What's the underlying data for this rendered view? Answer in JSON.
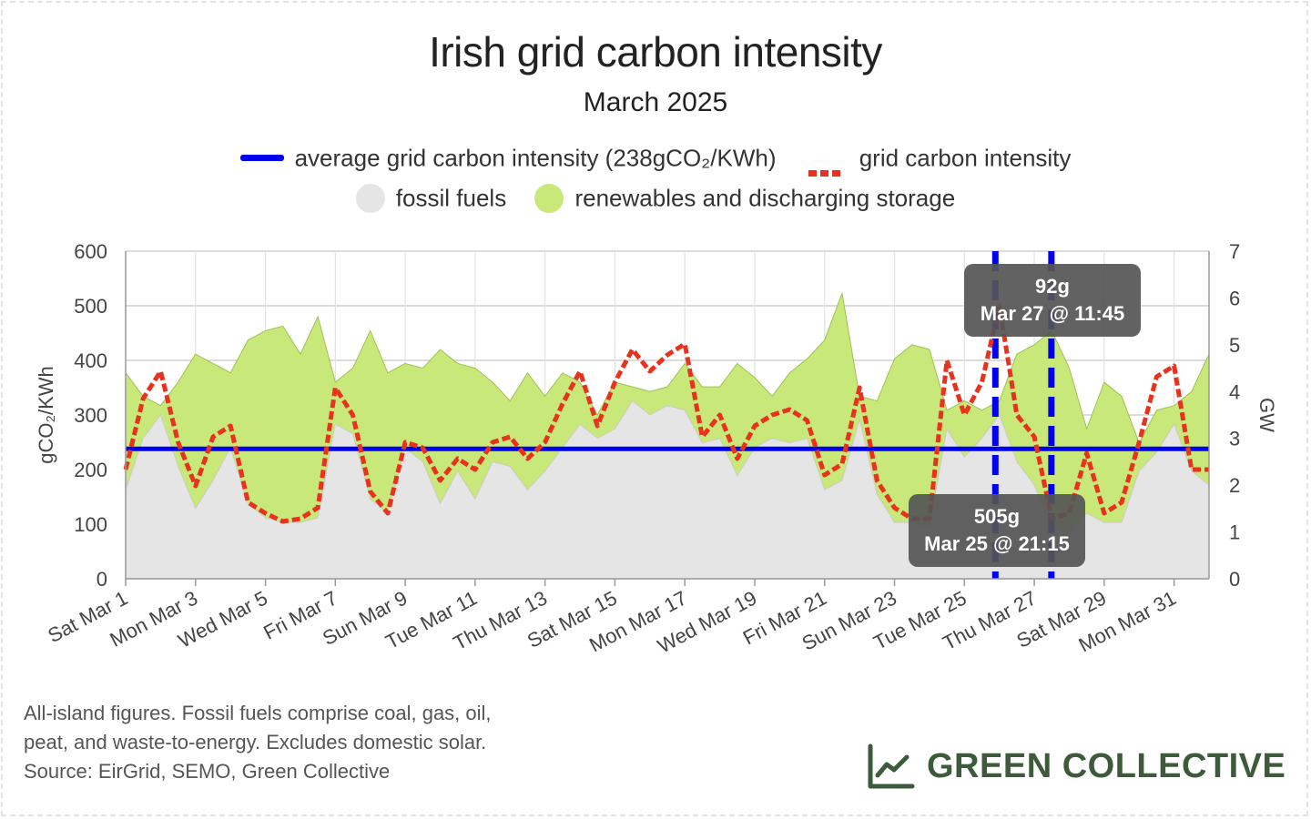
{
  "colors": {
    "average_line": "#0000ee",
    "intensity_line": "#e8321e",
    "fossil_fill": "#e5e5e5",
    "renewables_fill": "#c9e87a",
    "renewables_stroke": "#9fc24e",
    "tooltip_bg": "#555555",
    "brand": "#3d5a3a"
  },
  "legend": {
    "average": "average grid carbon intensity (238gCO₂/KWh)",
    "intensity": "grid carbon intensity",
    "fossil": "fossil fuels",
    "renewables": "renewables and discharging storage"
  },
  "tooltips": [
    {
      "value": "92g",
      "time": "Mar 27 @ 11:45"
    },
    {
      "value": "505g",
      "time": "Mar 25 @ 21:15"
    }
  ],
  "footnote": [
    "All-island figures. Fossil fuels comprise coal, gas, oil,",
    "peat, and waste-to-energy. Excludes domestic solar.",
    "Source: EirGrid, SEMO, Green Collective"
  ],
  "brand": {
    "name": "GREEN COLLECTIVE",
    "icon": "line-chart-icon"
  },
  "chart_data": {
    "type": "line",
    "title": "Irish grid carbon intensity",
    "subtitle": "March 2025",
    "ylabel": "gCO₂/KWh",
    "y2label": "GW",
    "ylim": [
      0,
      600
    ],
    "y2lim": [
      0,
      7
    ],
    "yticks": [
      0,
      100,
      200,
      300,
      400,
      500,
      600
    ],
    "y2ticks": [
      0,
      1,
      2,
      3,
      4,
      5,
      6,
      7
    ],
    "xlim_days": [
      1,
      32
    ],
    "xtick_labels": [
      "Sat Mar 1",
      "Mon Mar 3",
      "Wed Mar 5",
      "Fri Mar 7",
      "Sun Mar 9",
      "Tue Mar 11",
      "Thu Mar 13",
      "Sat Mar 15",
      "Mon Mar 17",
      "Wed Mar 19",
      "Fri Mar 21",
      "Sun Mar 23",
      "Tue Mar 25",
      "Thu Mar 27",
      "Sat Mar 29",
      "Mon Mar 31"
    ],
    "grid": true,
    "average_intensity": 238,
    "highlights": [
      {
        "date": "2025-03-25 21:15",
        "value": 505
      },
      {
        "date": "2025-03-27 11:45",
        "value": 92
      }
    ],
    "series": [
      {
        "name": "grid carbon intensity",
        "axis": "left",
        "x": [
          "Mar 1 00:00",
          "Mar 1 12:00",
          "Mar 2 00:00",
          "Mar 2 12:00",
          "Mar 3 00:00",
          "Mar 3 12:00",
          "Mar 4 00:00",
          "Mar 4 12:00",
          "Mar 5 00:00",
          "Mar 5 12:00",
          "Mar 6 00:00",
          "Mar 6 12:00",
          "Mar 7 00:00",
          "Mar 7 12:00",
          "Mar 8 00:00",
          "Mar 8 12:00",
          "Mar 9 00:00",
          "Mar 9 12:00",
          "Mar 10 00:00",
          "Mar 10 12:00",
          "Mar 11 00:00",
          "Mar 11 12:00",
          "Mar 12 00:00",
          "Mar 12 12:00",
          "Mar 13 00:00",
          "Mar 13 12:00",
          "Mar 14 00:00",
          "Mar 14 12:00",
          "Mar 15 00:00",
          "Mar 15 12:00",
          "Mar 16 00:00",
          "Mar 16 12:00",
          "Mar 17 00:00",
          "Mar 17 12:00",
          "Mar 18 00:00",
          "Mar 18 12:00",
          "Mar 19 00:00",
          "Mar 19 12:00",
          "Mar 20 00:00",
          "Mar 20 12:00",
          "Mar 21 00:00",
          "Mar 21 12:00",
          "Mar 22 00:00",
          "Mar 22 12:00",
          "Mar 23 00:00",
          "Mar 23 12:00",
          "Mar 24 00:00",
          "Mar 24 12:00",
          "Mar 25 00:00",
          "Mar 25 12:00",
          "Mar 26 00:00",
          "Mar 26 12:00",
          "Mar 27 00:00",
          "Mar 27 12:00",
          "Mar 28 00:00",
          "Mar 28 12:00",
          "Mar 29 00:00",
          "Mar 29 12:00",
          "Mar 30 00:00",
          "Mar 30 12:00",
          "Mar 31 00:00",
          "Mar 31 12:00",
          "Apr 1 00:00"
        ],
        "values": [
          200,
          330,
          380,
          250,
          170,
          260,
          280,
          140,
          120,
          105,
          110,
          130,
          350,
          300,
          160,
          120,
          250,
          240,
          180,
          220,
          200,
          250,
          260,
          220,
          250,
          320,
          380,
          280,
          360,
          420,
          380,
          410,
          430,
          260,
          300,
          220,
          280,
          300,
          310,
          290,
          190,
          210,
          350,
          180,
          130,
          110,
          110,
          400,
          300,
          360,
          500,
          300,
          260,
          110,
          120,
          230,
          120,
          140,
          250,
          370,
          390,
          200,
          200
        ]
      },
      {
        "name": "fossil fuels",
        "axis": "right",
        "x": [
          "Mar 1 00:00",
          "Mar 1 12:00",
          "Mar 2 00:00",
          "Mar 2 12:00",
          "Mar 3 00:00",
          "Mar 3 12:00",
          "Mar 4 00:00",
          "Mar 4 12:00",
          "Mar 5 00:00",
          "Mar 5 12:00",
          "Mar 6 00:00",
          "Mar 6 12:00",
          "Mar 7 00:00",
          "Mar 7 12:00",
          "Mar 8 00:00",
          "Mar 8 12:00",
          "Mar 9 00:00",
          "Mar 9 12:00",
          "Mar 10 00:00",
          "Mar 10 12:00",
          "Mar 11 00:00",
          "Mar 11 12:00",
          "Mar 12 00:00",
          "Mar 12 12:00",
          "Mar 13 00:00",
          "Mar 13 12:00",
          "Mar 14 00:00",
          "Mar 14 12:00",
          "Mar 15 00:00",
          "Mar 15 12:00",
          "Mar 16 00:00",
          "Mar 16 12:00",
          "Mar 17 00:00",
          "Mar 17 12:00",
          "Mar 18 00:00",
          "Mar 18 12:00",
          "Mar 19 00:00",
          "Mar 19 12:00",
          "Mar 20 00:00",
          "Mar 20 12:00",
          "Mar 21 00:00",
          "Mar 21 12:00",
          "Mar 22 00:00",
          "Mar 22 12:00",
          "Mar 23 00:00",
          "Mar 23 12:00",
          "Mar 24 00:00",
          "Mar 24 12:00",
          "Mar 25 00:00",
          "Mar 25 12:00",
          "Mar 26 00:00",
          "Mar 26 12:00",
          "Mar 27 00:00",
          "Mar 27 12:00",
          "Mar 28 00:00",
          "Mar 28 12:00",
          "Mar 29 00:00",
          "Mar 29 12:00",
          "Mar 30 00:00",
          "Mar 30 12:00",
          "Mar 31 00:00",
          "Mar 31 12:00",
          "Apr 1 00:00"
        ],
        "values": [
          1.9,
          3.0,
          3.5,
          2.4,
          1.5,
          2.1,
          2.8,
          1.6,
          1.3,
          1.2,
          1.2,
          1.3,
          3.3,
          3.1,
          1.7,
          1.4,
          2.8,
          2.5,
          1.6,
          2.3,
          1.7,
          2.5,
          2.4,
          1.9,
          2.3,
          2.8,
          3.3,
          3.0,
          3.2,
          3.8,
          3.5,
          3.7,
          3.6,
          2.9,
          3.0,
          2.2,
          2.8,
          3.0,
          2.9,
          3.0,
          1.9,
          2.1,
          3.4,
          1.8,
          1.2,
          1.2,
          1.1,
          3.2,
          2.6,
          3.0,
          3.5,
          2.5,
          2.0,
          1.1,
          1.0,
          1.4,
          1.2,
          1.2,
          2.3,
          2.7,
          3.3,
          2.3,
          2.0
        ]
      },
      {
        "name": "renewables and discharging storage",
        "axis": "right",
        "x": [
          "Mar 1 00:00",
          "Mar 1 12:00",
          "Mar 2 00:00",
          "Mar 2 12:00",
          "Mar 3 00:00",
          "Mar 3 12:00",
          "Mar 4 00:00",
          "Mar 4 12:00",
          "Mar 5 00:00",
          "Mar 5 12:00",
          "Mar 6 00:00",
          "Mar 6 12:00",
          "Mar 7 00:00",
          "Mar 7 12:00",
          "Mar 8 00:00",
          "Mar 8 12:00",
          "Mar 9 00:00",
          "Mar 9 12:00",
          "Mar 10 00:00",
          "Mar 10 12:00",
          "Mar 11 00:00",
          "Mar 11 12:00",
          "Mar 12 00:00",
          "Mar 12 12:00",
          "Mar 13 00:00",
          "Mar 13 12:00",
          "Mar 14 00:00",
          "Mar 14 12:00",
          "Mar 15 00:00",
          "Mar 15 12:00",
          "Mar 16 00:00",
          "Mar 16 12:00",
          "Mar 17 00:00",
          "Mar 17 12:00",
          "Mar 18 00:00",
          "Mar 18 12:00",
          "Mar 19 00:00",
          "Mar 19 12:00",
          "Mar 20 00:00",
          "Mar 20 12:00",
          "Mar 21 00:00",
          "Mar 21 12:00",
          "Mar 22 00:00",
          "Mar 22 12:00",
          "Mar 23 00:00",
          "Mar 23 12:00",
          "Mar 24 00:00",
          "Mar 24 12:00",
          "Mar 25 00:00",
          "Mar 25 12:00",
          "Mar 26 00:00",
          "Mar 26 12:00",
          "Mar 27 00:00",
          "Mar 27 12:00",
          "Mar 28 00:00",
          "Mar 28 12:00",
          "Mar 29 00:00",
          "Mar 29 12:00",
          "Mar 30 00:00",
          "Mar 30 12:00",
          "Mar 31 00:00",
          "Mar 31 12:00",
          "Apr 1 00:00"
        ],
        "values": [
          2.5,
          0.9,
          0.2,
          1.8,
          3.3,
          2.5,
          1.6,
          3.5,
          4.0,
          4.2,
          3.6,
          4.3,
          0.9,
          1.4,
          3.6,
          3.0,
          1.8,
          2.0,
          3.3,
          2.3,
          2.8,
          1.7,
          1.4,
          2.5,
          1.6,
          1.6,
          0.9,
          0.5,
          1.0,
          0.3,
          0.5,
          0.4,
          1.0,
          1.2,
          1.1,
          2.4,
          1.5,
          0.9,
          1.5,
          1.7,
          3.2,
          4.0,
          0.5,
          2.0,
          3.5,
          3.8,
          3.8,
          0.4,
          1.2,
          0.6,
          0.3,
          2.3,
          3.0,
          4.2,
          3.5,
          1.8,
          3.0,
          2.7,
          0.6,
          0.9,
          0.4,
          1.7,
          2.8
        ]
      }
    ]
  }
}
